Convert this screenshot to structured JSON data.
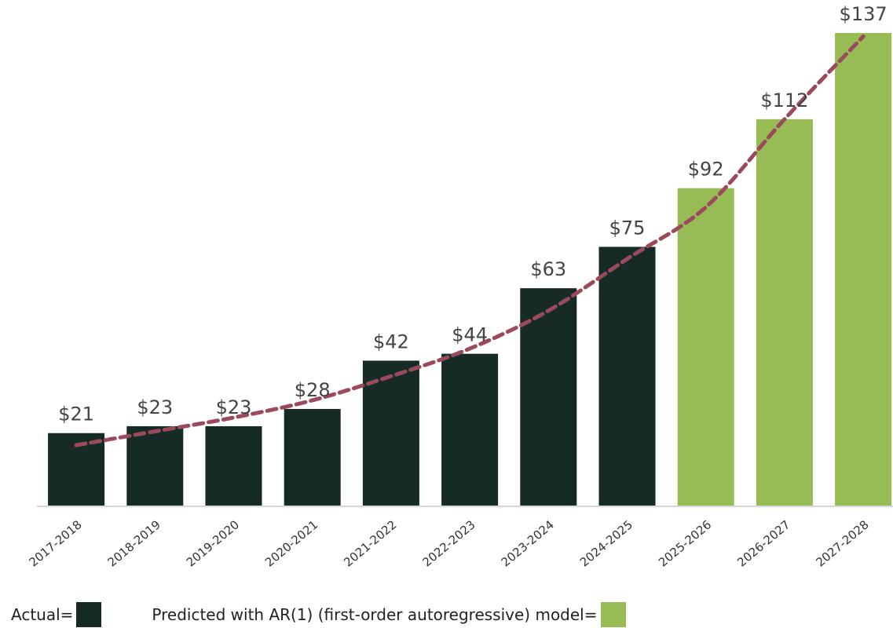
{
  "chart_data": {
    "type": "bar",
    "categories": [
      "2017-2018",
      "2018-2019",
      "2019-2020",
      "2020-2021",
      "2021-2022",
      "2022-2023",
      "2023-2024",
      "2024-2025",
      "2025-2026",
      "2026-2027",
      "2027-2028"
    ],
    "values": [
      21,
      23,
      23,
      28,
      42,
      44,
      63,
      75,
      92,
      112,
      137
    ],
    "value_labels": [
      "$21",
      "$23",
      "$23",
      "$28",
      "$42",
      "$44",
      "$63",
      "$75",
      "$92",
      "$112",
      "$137"
    ],
    "kinds": [
      "actual",
      "actual",
      "actual",
      "actual",
      "actual",
      "actual",
      "actual",
      "actual",
      "predicted",
      "predicted",
      "predicted"
    ],
    "trendline": {
      "style": "dashed",
      "color": "#9b4a5c",
      "values": [
        17.5,
        21.5,
        25.5,
        30.5,
        37.5,
        45.5,
        56.5,
        71.5,
        86.5,
        112,
        136
      ]
    },
    "ylim": [
      0,
      145
    ],
    "grid": false,
    "colors": {
      "actual": "#162b26",
      "predicted": "#97bb55",
      "axis": "#c8c8c8",
      "label": "#444444"
    }
  },
  "legend": {
    "actual_label": "Actual=",
    "predicted_label": "Predicted with AR(1) (first-order autoregressive) model="
  }
}
